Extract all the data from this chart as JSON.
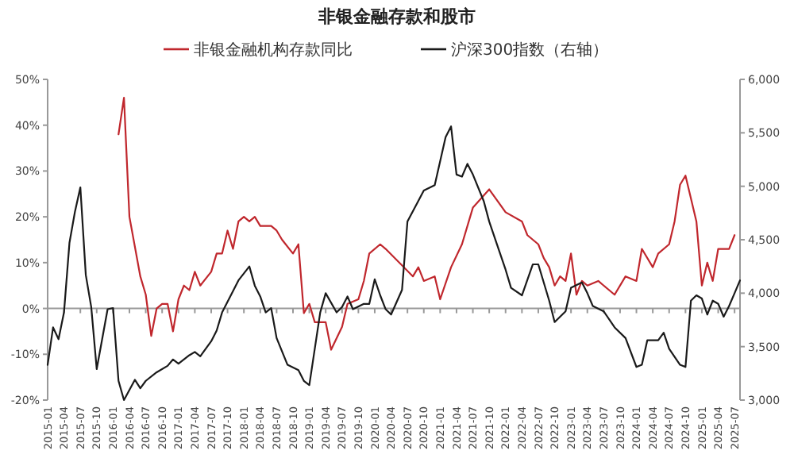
{
  "chart_data": {
    "type": "line",
    "title": "非银金融存款和股市",
    "legend": "top",
    "marker": "none",
    "line_style": "solid",
    "xlim": [
      "2015-01",
      "2025-08"
    ],
    "xticks": [
      "2015-01",
      "2015-04",
      "2015-07",
      "2015-10",
      "2016-01",
      "2016-04",
      "2016-07",
      "2016-10",
      "2017-01",
      "2017-04",
      "2017-07",
      "2017-10",
      "2018-01",
      "2018-04",
      "2018-07",
      "2018-10",
      "2019-01",
      "2019-04",
      "2019-07",
      "2019-10",
      "2020-01",
      "2020-04",
      "2020-07",
      "2020-10",
      "2021-01",
      "2021-04",
      "2021-07",
      "2021-10",
      "2022-01",
      "2022-04",
      "2022-07",
      "2022-10",
      "2023-01",
      "2023-04",
      "2023-07",
      "2023-10",
      "2024-01",
      "2024-04",
      "2024-07",
      "2024-10",
      "2025-01",
      "2025-04",
      "2025-07"
    ],
    "ylim": [
      -20,
      50
    ],
    "yticks": [
      {
        "value": -20,
        "label": "-20%"
      },
      {
        "value": -10,
        "label": "-10%"
      },
      {
        "value": 0,
        "label": "0%"
      },
      {
        "value": 10,
        "label": "10%"
      },
      {
        "value": 20,
        "label": "20%"
      },
      {
        "value": 30,
        "label": "30%"
      },
      {
        "value": 40,
        "label": "40%"
      },
      {
        "value": 50,
        "label": "50%"
      }
    ],
    "y2lim": [
      3000,
      6000
    ],
    "y2ticks": [
      {
        "value": 3000,
        "label": "3,000"
      },
      {
        "value": 3500,
        "label": "3,500"
      },
      {
        "value": 4000,
        "label": "4,000"
      },
      {
        "value": 4500,
        "label": "4,500"
      },
      {
        "value": 5000,
        "label": "5,000"
      },
      {
        "value": 5500,
        "label": "5,500"
      },
      {
        "value": 6000,
        "label": "6,000"
      }
    ],
    "series": [
      {
        "name": "非银金融机构存款同比",
        "color": "#c0272d",
        "x": [
          "2016-02",
          "2016-03",
          "2016-04",
          "2016-06",
          "2016-07",
          "2016-08",
          "2016-09",
          "2016-10",
          "2016-11",
          "2016-12",
          "2017-01",
          "2017-02",
          "2017-03",
          "2017-04",
          "2017-05",
          "2017-07",
          "2017-08",
          "2017-09",
          "2017-10",
          "2017-11",
          "2017-12",
          "2018-01",
          "2018-02",
          "2018-03",
          "2018-04",
          "2018-06",
          "2018-07",
          "2018-08",
          "2018-10",
          "2018-11",
          "2018-12",
          "2019-01",
          "2019-02",
          "2019-04",
          "2019-05",
          "2019-07",
          "2019-08",
          "2019-10",
          "2019-11",
          "2019-12",
          "2020-02",
          "2020-03",
          "2020-08",
          "2020-09",
          "2020-10",
          "2020-12",
          "2021-01",
          "2021-03",
          "2021-05",
          "2021-07",
          "2021-10",
          "2022-01",
          "2022-04",
          "2022-05",
          "2022-07",
          "2022-08",
          "2022-09",
          "2022-10",
          "2022-11",
          "2022-12",
          "2023-01",
          "2023-02",
          "2023-03",
          "2023-04",
          "2023-06",
          "2023-07",
          "2023-09",
          "2023-11",
          "2024-01",
          "2024-02",
          "2024-04",
          "2024-05",
          "2024-07",
          "2024-08",
          "2024-09",
          "2024-10",
          "2024-12",
          "2025-01",
          "2025-02",
          "2025-03",
          "2025-04",
          "2025-06",
          "2025-07"
        ],
        "values": [
          38,
          46,
          20,
          7,
          3,
          -6,
          0,
          1,
          1,
          -5,
          2,
          5,
          4,
          8,
          5,
          8,
          12,
          12,
          17,
          13,
          19,
          20,
          19,
          20,
          18,
          18,
          17,
          15,
          12,
          14,
          -1,
          1,
          -3,
          -3,
          -9,
          -4,
          1,
          2,
          6,
          12,
          14,
          13,
          7,
          9,
          6,
          7,
          2,
          9,
          14,
          22,
          26,
          21,
          19,
          16,
          14,
          11,
          9,
          5,
          7,
          6,
          12,
          3,
          6,
          5,
          6,
          5,
          3,
          7,
          6,
          13,
          9,
          12,
          14,
          19,
          27,
          29,
          19,
          5,
          10,
          6,
          13,
          13,
          16
        ]
      },
      {
        "name": "沪深300指数（右轴）",
        "color": "#1a1a1a",
        "axis": "y2",
        "x": [
          "2015-01",
          "2015-02",
          "2015-03",
          "2015-04",
          "2015-05",
          "2015-06",
          "2015-07",
          "2015-08",
          "2015-09",
          "2015-10",
          "2015-11",
          "2015-12",
          "2016-01",
          "2016-02",
          "2016-03",
          "2016-05",
          "2016-06",
          "2016-07",
          "2016-09",
          "2016-11",
          "2016-12",
          "2017-01",
          "2017-03",
          "2017-04",
          "2017-05",
          "2017-07",
          "2017-08",
          "2017-09",
          "2017-11",
          "2017-12",
          "2018-02",
          "2018-03",
          "2018-04",
          "2018-05",
          "2018-06",
          "2018-07",
          "2018-09",
          "2018-11",
          "2018-12",
          "2019-01",
          "2019-03",
          "2019-04",
          "2019-06",
          "2019-07",
          "2019-08",
          "2019-09",
          "2019-11",
          "2019-12",
          "2020-01",
          "2020-02",
          "2020-03",
          "2020-04",
          "2020-06",
          "2020-07",
          "2020-10",
          "2020-12",
          "2021-02",
          "2021-03",
          "2021-04",
          "2021-05",
          "2021-06",
          "2021-07",
          "2021-09",
          "2021-10",
          "2021-11",
          "2022-01",
          "2022-02",
          "2022-04",
          "2022-06",
          "2022-07",
          "2022-09",
          "2022-10",
          "2022-12",
          "2023-01",
          "2023-03",
          "2023-04",
          "2023-05",
          "2023-07",
          "2023-09",
          "2023-11",
          "2024-01",
          "2024-02",
          "2024-03",
          "2024-05",
          "2024-06",
          "2024-07",
          "2024-09",
          "2024-10",
          "2024-11",
          "2024-12",
          "2025-01",
          "2025-02",
          "2025-03",
          "2025-04",
          "2025-05",
          "2025-06",
          "2025-07",
          "2025-08"
        ],
        "values": [
          3330,
          3680,
          3570,
          3820,
          4470,
          4760,
          4990,
          4170,
          3870,
          3290,
          3570,
          3850,
          3860,
          3180,
          3000,
          3190,
          3110,
          3180,
          3260,
          3320,
          3380,
          3340,
          3420,
          3450,
          3410,
          3550,
          3650,
          3820,
          4020,
          4120,
          4250,
          4070,
          3970,
          3820,
          3860,
          3580,
          3330,
          3280,
          3180,
          3140,
          3820,
          4000,
          3820,
          3870,
          3970,
          3850,
          3900,
          3900,
          4130,
          3980,
          3850,
          3800,
          4030,
          4670,
          4960,
          5010,
          5460,
          5560,
          5110,
          5090,
          5210,
          5110,
          4860,
          4670,
          4520,
          4220,
          4050,
          3980,
          4270,
          4270,
          3930,
          3730,
          3830,
          4050,
          4100,
          4000,
          3880,
          3830,
          3680,
          3580,
          3310,
          3330,
          3560,
          3560,
          3630,
          3480,
          3330,
          3310,
          3930,
          3980,
          3950,
          3800,
          3930,
          3900,
          3780,
          3880,
          4000,
          4120
        ]
      }
    ]
  }
}
